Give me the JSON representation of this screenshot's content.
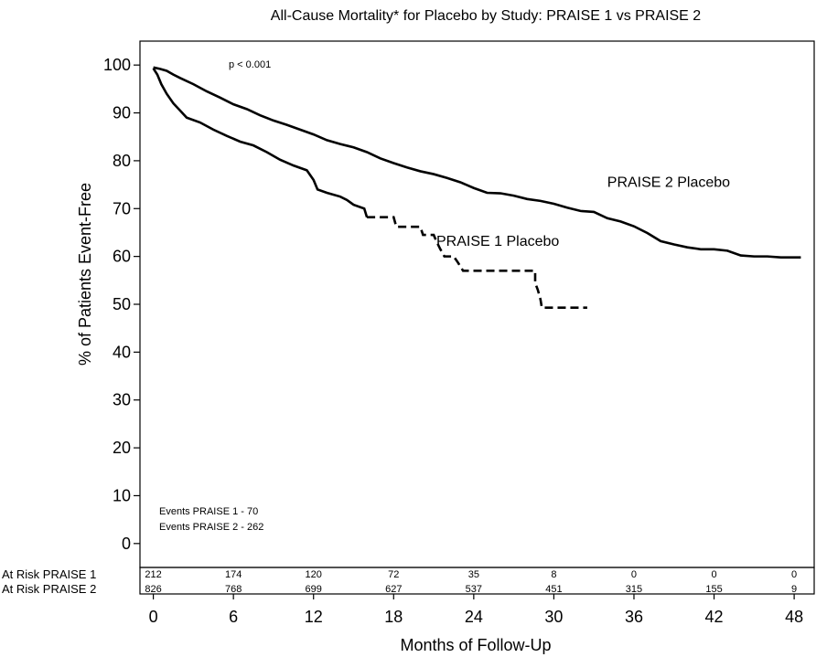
{
  "chart_data": {
    "type": "line",
    "title": "All-Cause Mortality* for Placebo by Study: PRAISE 1 vs PRAISE 2",
    "xlabel": "Months of Follow-Up",
    "ylabel": "% of Patients Event-Free",
    "xlim": [
      -1,
      49.5
    ],
    "ylim": [
      -5,
      105
    ],
    "xticks": [
      0,
      6,
      12,
      18,
      24,
      30,
      36,
      42,
      48
    ],
    "yticks": [
      0,
      10,
      20,
      30,
      40,
      50,
      60,
      70,
      80,
      90,
      100
    ],
    "annotations": {
      "pvalue": "p < 0.001",
      "events1": "Events PRAISE 1 - 70",
      "events2": "Events PRAISE 2 - 262"
    },
    "series": [
      {
        "name": "PRAISE 2 Placebo",
        "label_pos": [
          34,
          74.5
        ],
        "style": "solid",
        "points": [
          [
            0,
            99.5
          ],
          [
            0.5,
            99.2
          ],
          [
            1,
            98.8
          ],
          [
            1.5,
            98
          ],
          [
            2,
            97.3
          ],
          [
            3,
            96
          ],
          [
            4,
            94.5
          ],
          [
            5,
            93.2
          ],
          [
            6,
            91.8
          ],
          [
            7,
            90.8
          ],
          [
            8,
            89.5
          ],
          [
            9,
            88.4
          ],
          [
            10,
            87.5
          ],
          [
            11,
            86.5
          ],
          [
            12,
            85.5
          ],
          [
            13,
            84.3
          ],
          [
            14,
            83.5
          ],
          [
            15,
            82.8
          ],
          [
            16,
            81.8
          ],
          [
            17,
            80.5
          ],
          [
            18,
            79.5
          ],
          [
            19,
            78.6
          ],
          [
            20,
            77.8
          ],
          [
            21,
            77.2
          ],
          [
            22,
            76.4
          ],
          [
            23,
            75.5
          ],
          [
            24,
            74.3
          ],
          [
            25,
            73.3
          ],
          [
            26,
            73.2
          ],
          [
            27,
            72.7
          ],
          [
            28,
            72
          ],
          [
            29,
            71.6
          ],
          [
            30,
            71
          ],
          [
            31,
            70.2
          ],
          [
            32,
            69.5
          ],
          [
            33,
            69.3
          ],
          [
            34,
            68
          ],
          [
            35,
            67.3
          ],
          [
            36,
            66.3
          ],
          [
            37,
            64.9
          ],
          [
            38,
            63.2
          ],
          [
            39,
            62.5
          ],
          [
            40,
            61.9
          ],
          [
            41,
            61.5
          ],
          [
            42,
            61.5
          ],
          [
            43,
            61.2
          ],
          [
            44,
            60.2
          ],
          [
            45,
            60
          ],
          [
            46,
            60
          ],
          [
            47,
            59.8
          ],
          [
            48,
            59.8
          ],
          [
            48.5,
            59.8
          ]
        ]
      },
      {
        "name": "PRAISE 1 Placebo",
        "label_pos": [
          21.2,
          62.2
        ],
        "style": "mixed",
        "points": [
          [
            0,
            99.3
          ],
          [
            0.3,
            98
          ],
          [
            0.6,
            96
          ],
          [
            1,
            94
          ],
          [
            1.5,
            92
          ],
          [
            2,
            90.5
          ],
          [
            2.5,
            89
          ],
          [
            3.5,
            88
          ],
          [
            4.5,
            86.5
          ],
          [
            5.5,
            85.2
          ],
          [
            6.5,
            84
          ],
          [
            7.5,
            83.2
          ],
          [
            8.5,
            81.8
          ],
          [
            9.5,
            80.2
          ],
          [
            10.5,
            79
          ],
          [
            11.5,
            78
          ],
          [
            12,
            76
          ],
          [
            12.3,
            74
          ],
          [
            13,
            73.3
          ],
          [
            14,
            72.5
          ],
          [
            14.5,
            71.8
          ],
          [
            15,
            70.8
          ],
          [
            15.8,
            70
          ],
          [
            16,
            68.2
          ],
          [
            18,
            68.2
          ],
          [
            18.2,
            66.2
          ],
          [
            20,
            66.2
          ],
          [
            20.2,
            64.5
          ],
          [
            21,
            64.5
          ],
          [
            21.2,
            63.2
          ],
          [
            21.5,
            61.5
          ],
          [
            21.8,
            60
          ],
          [
            22.5,
            60
          ],
          [
            22.8,
            58.8
          ],
          [
            23.2,
            57
          ],
          [
            28.6,
            57
          ],
          [
            28.6,
            54.5
          ],
          [
            28.8,
            53
          ],
          [
            29,
            51
          ],
          [
            29.1,
            49.3
          ],
          [
            32.5,
            49.3
          ]
        ],
        "dash_from_x": 16
      }
    ],
    "at_risk": {
      "rows": [
        {
          "label": "At Risk PRAISE 1",
          "values": [
            "212",
            "174",
            "120",
            "72",
            "35",
            "8",
            "0",
            "0",
            "0"
          ]
        },
        {
          "label": "At Risk PRAISE 2",
          "values": [
            "826",
            "768",
            "699",
            "627",
            "537",
            "451",
            "315",
            "155",
            "9"
          ]
        }
      ]
    }
  }
}
